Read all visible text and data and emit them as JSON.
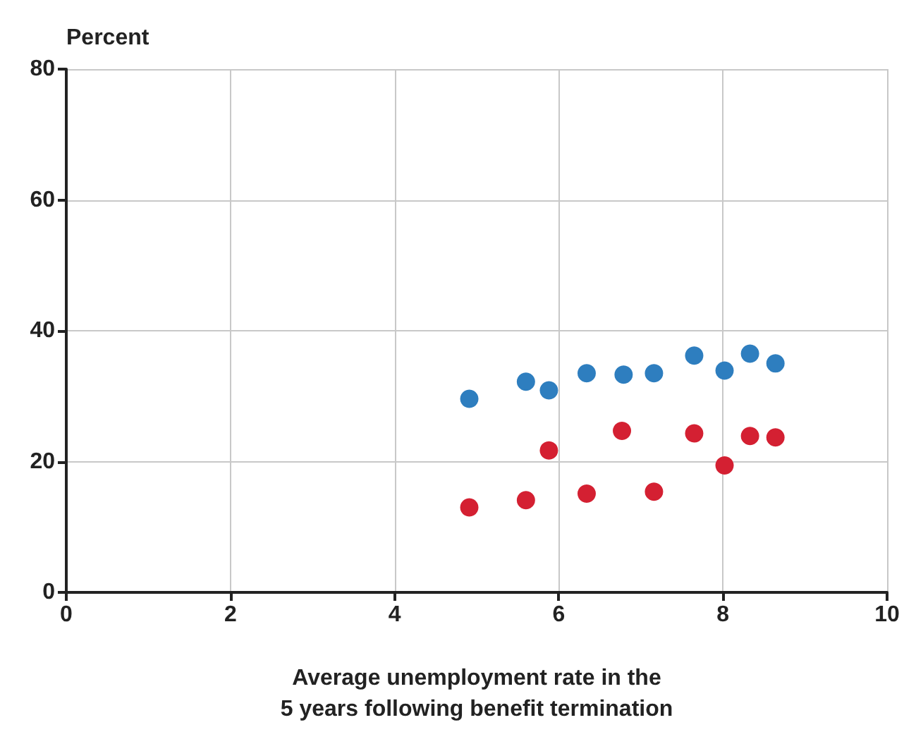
{
  "chart_data": {
    "type": "scatter",
    "ylabel": "Percent",
    "xlabel": "Average unemployment rate in the\n5 years following benefit termination",
    "xlim": [
      0,
      10
    ],
    "xticks": [
      0,
      2,
      4,
      6,
      8,
      10
    ],
    "ylim": [
      0,
      80
    ],
    "yticks": [
      0,
      20,
      40,
      60,
      80
    ],
    "grid": true,
    "marker": "circle",
    "series": [
      {
        "color": "#2e7ebf",
        "x": [
          4.91,
          5.6,
          5.88,
          6.34,
          6.79,
          7.16,
          7.65,
          8.02,
          8.33,
          8.64
        ],
        "values": [
          29.6,
          32.2,
          30.9,
          33.5,
          33.3,
          33.5,
          36.2,
          33.9,
          36.5,
          35.0
        ]
      },
      {
        "color": "#d42032",
        "x": [
          4.91,
          5.6,
          5.88,
          6.34,
          6.77,
          7.16,
          7.65,
          8.02,
          8.33,
          8.64
        ],
        "values": [
          13.0,
          14.1,
          21.7,
          15.1,
          24.7,
          15.4,
          24.3,
          19.4,
          23.9,
          23.7
        ]
      }
    ]
  }
}
